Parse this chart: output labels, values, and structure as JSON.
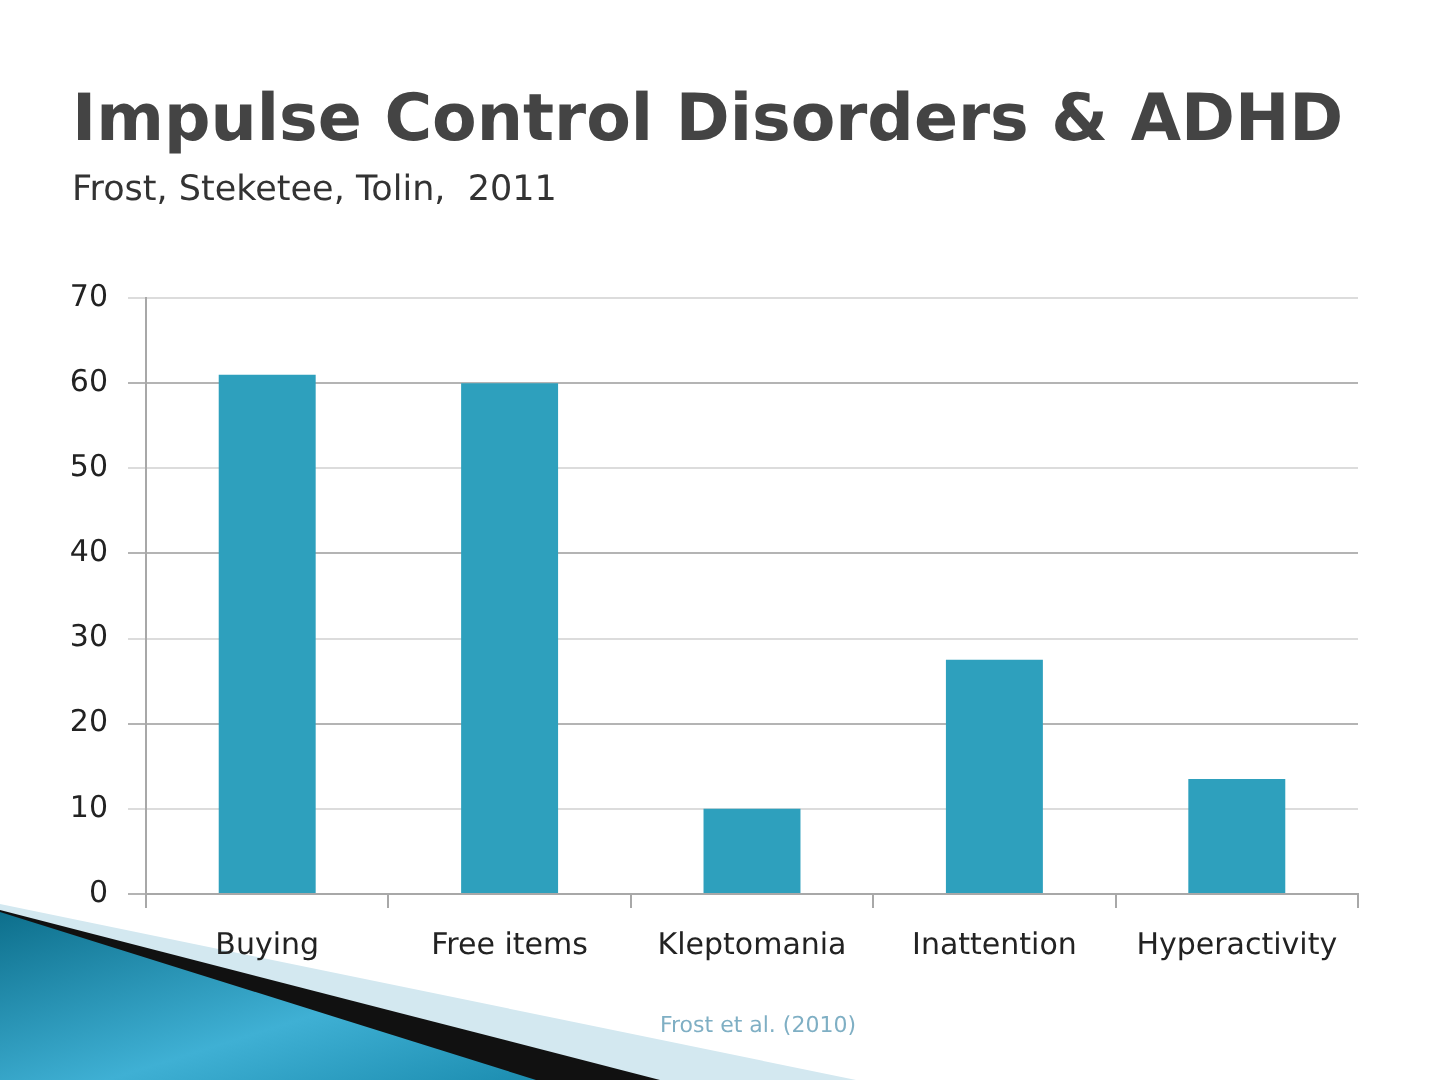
{
  "chart_data": {
    "type": "bar",
    "title": "Impulse Control Disorders & ADHD",
    "subtitle": "Frost, Steketee, Tolin,  2011",
    "categories": [
      "Buying",
      "Free items",
      "Kleptomania",
      "Inattention",
      "Hyperactivity"
    ],
    "values": [
      61,
      60,
      10,
      27.5,
      13.5
    ],
    "color": "#2ea0bd",
    "ylim": [
      0,
      70
    ],
    "yticks": [
      0,
      10,
      20,
      30,
      40,
      50,
      60,
      70
    ],
    "grid": "y",
    "annotations": [
      "Frost et al. (2010)"
    ]
  }
}
